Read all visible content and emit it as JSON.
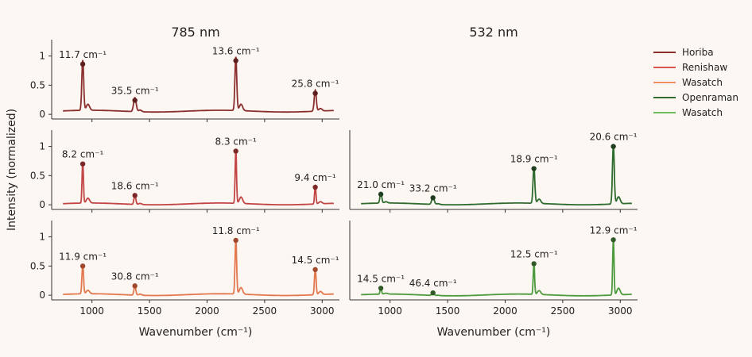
{
  "figure": {
    "col_titles": [
      "785 nm",
      "532 nm"
    ],
    "ylabel": "Intensity (normalized)",
    "xlabel": "Wavenumber (cm⁻¹)"
  },
  "legend": [
    {
      "label": "Horiba",
      "color": "#8b2e2e"
    },
    {
      "label": "Renishaw",
      "color": "#d9534f"
    },
    {
      "label": "Wasatch",
      "color": "#f08f60"
    },
    {
      "label": "Openraman",
      "color": "#2e6b2e"
    },
    {
      "label": "Wasatch",
      "color": "#6abf5e"
    }
  ],
  "chart_data": [
    {
      "type": "line",
      "instrument": "Horiba",
      "laser": "785 nm",
      "row": 0,
      "col": 0,
      "color": "#8b2e2e",
      "marker_color": "#5e1f1f",
      "xlim": [
        650,
        3150
      ],
      "ylim": [
        -0.08,
        1.28
      ],
      "xticks": [],
      "yticks": [
        0,
        0.5,
        1
      ],
      "ytick_labels": [
        "0",
        "0.5",
        "1"
      ],
      "baseline": 0.055,
      "x_range": [
        748,
        3100
      ],
      "peaks": [
        {
          "x": 920,
          "y": 0.86,
          "w": 8,
          "label": "11.7 cm⁻¹"
        },
        {
          "x": 1373,
          "y": 0.24,
          "w": 11,
          "label": "35.5 cm⁻¹"
        },
        {
          "x": 2250,
          "y": 0.92,
          "w": 8,
          "label": "13.6 cm⁻¹"
        },
        {
          "x": 2940,
          "y": 0.36,
          "w": 9,
          "label": "25.8 cm⁻¹"
        }
      ]
    },
    {
      "type": "line",
      "instrument": "Renishaw",
      "laser": "785 nm",
      "row": 1,
      "col": 0,
      "color": "#c24545",
      "marker_color": "#7a2828",
      "xlim": [
        650,
        3150
      ],
      "ylim": [
        -0.08,
        1.28
      ],
      "xticks": [],
      "yticks": [
        0,
        0.5,
        1
      ],
      "ytick_labels": [
        "0",
        "0.5",
        "1"
      ],
      "baseline": 0.015,
      "x_range": [
        748,
        3100
      ],
      "peaks": [
        {
          "x": 920,
          "y": 0.7,
          "w": 6,
          "label": "8.2 cm⁻¹"
        },
        {
          "x": 1373,
          "y": 0.16,
          "w": 8,
          "label": "18.6 cm⁻¹"
        },
        {
          "x": 2250,
          "y": 0.92,
          "w": 6,
          "label": "8.3 cm⁻¹"
        },
        {
          "x": 2940,
          "y": 0.3,
          "w": 6,
          "label": "9.4 cm⁻¹"
        }
      ]
    },
    {
      "type": "line",
      "instrument": "Wasatch",
      "laser": "785 nm",
      "row": 2,
      "col": 0,
      "color": "#e3784f",
      "marker_color": "#a0482c",
      "xlim": [
        650,
        3150
      ],
      "ylim": [
        -0.08,
        1.28
      ],
      "xticks": [
        1000,
        1500,
        2000,
        2500,
        3000
      ],
      "yticks": [
        0,
        0.5,
        1
      ],
      "ytick_labels": [
        "0",
        "0.5",
        "1"
      ],
      "baseline": 0.01,
      "x_range": [
        748,
        3100
      ],
      "peaks": [
        {
          "x": 920,
          "y": 0.5,
          "w": 7,
          "label": "11.9 cm⁻¹"
        },
        {
          "x": 1373,
          "y": 0.16,
          "w": 8,
          "label": "30.8 cm⁻¹"
        },
        {
          "x": 2250,
          "y": 0.94,
          "w": 7,
          "label": "11.8 cm⁻¹"
        },
        {
          "x": 2940,
          "y": 0.44,
          "w": 7,
          "label": "14.5 cm⁻¹"
        }
      ]
    },
    {
      "type": "line",
      "instrument": "Openraman",
      "laser": "532 nm",
      "row": 1,
      "col": 1,
      "color": "#2e6b2e",
      "marker_color": "#1f3d1f",
      "xlim": [
        650,
        3150
      ],
      "ylim": [
        -0.08,
        1.28
      ],
      "xticks": [],
      "yticks": [],
      "ytick_labels": [],
      "baseline": 0.015,
      "x_range": [
        748,
        3100
      ],
      "peaks": [
        {
          "x": 920,
          "y": 0.18,
          "w": 8,
          "label": "21.0 cm⁻¹"
        },
        {
          "x": 1373,
          "y": 0.12,
          "w": 11,
          "label": "33.2 cm⁻¹"
        },
        {
          "x": 2250,
          "y": 0.62,
          "w": 8,
          "label": "18.9 cm⁻¹"
        },
        {
          "x": 2940,
          "y": 1.0,
          "w": 8,
          "label": "20.6 cm⁻¹"
        }
      ]
    },
    {
      "type": "line",
      "instrument": "Wasatch",
      "laser": "532 nm",
      "row": 2,
      "col": 1,
      "color": "#4e9a3e",
      "marker_color": "#2f5a27",
      "xlim": [
        650,
        3150
      ],
      "ylim": [
        -0.08,
        1.28
      ],
      "xticks": [
        1000,
        1500,
        2000,
        2500,
        3000
      ],
      "yticks": [],
      "ytick_labels": [],
      "baseline": 0.005,
      "x_range": [
        748,
        3100
      ],
      "peaks": [
        {
          "x": 920,
          "y": 0.12,
          "w": 6,
          "label": "14.5 cm⁻¹"
        },
        {
          "x": 1373,
          "y": 0.04,
          "w": 10,
          "label": "46.4 cm⁻¹"
        },
        {
          "x": 2250,
          "y": 0.54,
          "w": 6,
          "label": "12.5 cm⁻¹"
        },
        {
          "x": 2940,
          "y": 0.95,
          "w": 6,
          "label": "12.9 cm⁻¹"
        }
      ]
    }
  ]
}
